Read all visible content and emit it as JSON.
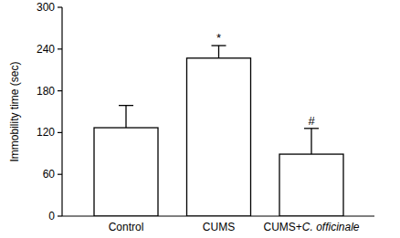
{
  "chart_data": {
    "type": "bar",
    "y_label": "Immobility time (sec)",
    "categories": [
      "Control",
      "CUMS",
      "CUMS+C. officinale"
    ],
    "values": [
      127,
      227,
      89
    ],
    "errors": [
      32,
      18,
      37
    ],
    "color": "#ffffff",
    "ylim": [
      0,
      300
    ],
    "yticks": [
      0,
      60,
      120,
      180,
      240,
      300
    ],
    "grid": false,
    "annotations": [
      {
        "category": "CUMS",
        "text": "*"
      },
      {
        "category": "CUMS+C. officinale",
        "text": "#"
      }
    ]
  }
}
